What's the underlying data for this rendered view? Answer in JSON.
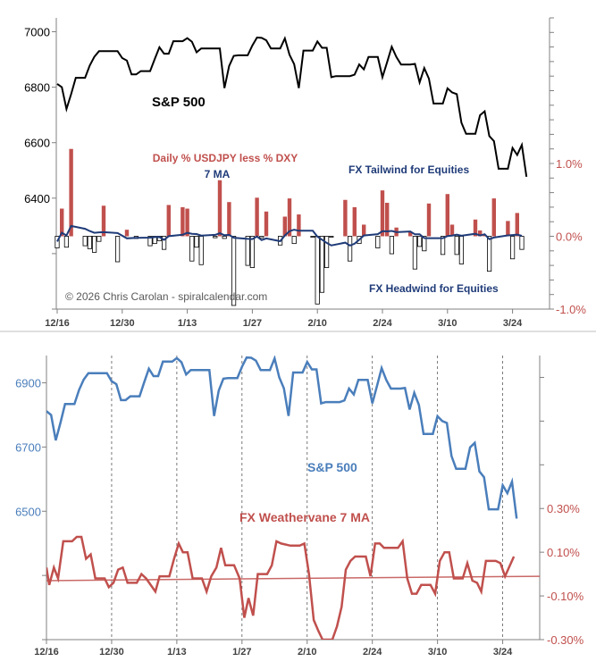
{
  "chart_data": [
    {
      "type": "line+bar",
      "title": "",
      "x_ticks": [
        "12/16",
        "12/30",
        "1/13",
        "1/27",
        "2/10",
        "2/24",
        "3/10",
        "3/24"
      ],
      "x_tick_days": [
        0,
        14,
        28,
        42,
        56,
        70,
        84,
        98
      ],
      "left_axis": {
        "ticks": [
          7000,
          6800,
          6600,
          6400
        ],
        "ylim": [
          6000,
          7050
        ]
      },
      "right_axis": {
        "ticks": [
          "1.0%",
          "0.0%",
          "-1.0%"
        ],
        "tick_values": [
          1.0,
          0.0,
          -1.0
        ],
        "ylim": [
          -1.0,
          3.0
        ]
      },
      "annotations": {
        "sp500": "S&P 500",
        "bars_label": "Daily % USDJPY less % DXY",
        "ma_label": "7 MA",
        "tailwind": "FX Tailwind for Equities",
        "headwind": "FX Headwind for Equities",
        "copyright": "© 2026 Chris Carolan - spiralcalendar.com"
      },
      "colors": {
        "sp500": "#000000",
        "bar_pos": "#C0504D",
        "bar_neg": "#FFFFFF",
        "ma": "#1F3B78"
      },
      "sp500": [
        6812,
        6800,
        6721,
        6775,
        6834,
        6834,
        6834,
        6878,
        6910,
        6930,
        6930,
        6930,
        6930,
        6930,
        6905,
        6896,
        6846,
        6846,
        6858,
        6858,
        6858,
        6902,
        6944,
        6921,
        6921,
        6966,
        6966,
        6966,
        6977,
        6964,
        6926,
        6940,
        6940,
        6940,
        6940,
        6940,
        6797,
        6876,
        6913,
        6915,
        6915,
        6915,
        6950,
        6979,
        6978,
        6969,
        6940,
        6940,
        6940,
        6976,
        6917,
        6883,
        6797,
        6932,
        6932,
        6932,
        6965,
        6942,
        6942,
        6836,
        6840,
        6840,
        6840,
        6840,
        6845,
        6882,
        6864,
        6909,
        6909,
        6909,
        6836,
        6890,
        6946,
        6909,
        6882,
        6882,
        6882,
        6884,
        6817,
        6869,
        6831,
        6741,
        6741,
        6741,
        6796,
        6781,
        6775,
        6672,
        6632,
        6632,
        6632,
        6699,
        6713,
        6624,
        6606,
        6506,
        6506,
        6506,
        6581,
        6556,
        6592,
        6477
      ],
      "bars": [
        [
          0,
          -0.16
        ],
        [
          1,
          0.38
        ],
        [
          2,
          -0.15
        ],
        [
          3,
          1.2
        ],
        [
          6,
          -0.13
        ],
        [
          7,
          -0.17
        ],
        [
          8,
          -0.22
        ],
        [
          9,
          -0.07
        ],
        [
          10,
          0.42
        ],
        [
          13,
          -0.35
        ],
        [
          15,
          0.09
        ],
        [
          17,
          -0.03
        ],
        [
          20,
          -0.13
        ],
        [
          21,
          -0.1
        ],
        [
          22,
          -0.06
        ],
        [
          23,
          -0.18
        ],
        [
          24,
          0.43
        ],
        [
          27,
          0.4
        ],
        [
          28,
          0.38
        ],
        [
          29,
          -0.34
        ],
        [
          30,
          -0.15
        ],
        [
          31,
          -0.39
        ],
        [
          34,
          -0.02
        ],
        [
          35,
          0.77
        ],
        [
          36,
          -0.03
        ],
        [
          37,
          0.47
        ],
        [
          38,
          -0.95
        ],
        [
          41,
          -0.4
        ],
        [
          42,
          -0.43
        ],
        [
          43,
          0.53
        ],
        [
          44,
          -0.02
        ],
        [
          45,
          0.34
        ],
        [
          48,
          -0.12
        ],
        [
          49,
          0.27
        ],
        [
          50,
          0.52
        ],
        [
          51,
          -0.1
        ],
        [
          52,
          0.3
        ],
        [
          55,
          -0.01
        ],
        [
          56,
          -0.93
        ],
        [
          57,
          -0.77
        ],
        [
          58,
          -0.43
        ],
        [
          59,
          -0.01
        ],
        [
          62,
          0.5
        ],
        [
          63,
          -0.34
        ],
        [
          64,
          0.4
        ],
        [
          65,
          -0.1
        ],
        [
          66,
          0.16
        ],
        [
          69,
          -0.16
        ],
        [
          70,
          0.63
        ],
        [
          71,
          0.46
        ],
        [
          72,
          -0.24
        ],
        [
          73,
          0.12
        ],
        [
          76,
          0.06
        ],
        [
          77,
          -0.45
        ],
        [
          78,
          -0.14
        ],
        [
          79,
          -0.2
        ],
        [
          80,
          0.45
        ],
        [
          83,
          -0.25
        ],
        [
          84,
          0.58
        ],
        [
          85,
          0.16
        ],
        [
          86,
          -0.25
        ],
        [
          87,
          -0.38
        ],
        [
          90,
          0.23
        ],
        [
          91,
          0.08
        ],
        [
          92,
          0.02
        ],
        [
          93,
          -0.48
        ],
        [
          94,
          0.52
        ],
        [
          97,
          0.21
        ],
        [
          98,
          -0.31
        ],
        [
          99,
          0.32
        ],
        [
          100,
          -0.18
        ]
      ]
    },
    {
      "type": "line",
      "x_ticks": [
        "12/16",
        "12/30",
        "1/13",
        "1/27",
        "2/10",
        "2/24",
        "3/10",
        "3/24"
      ],
      "x_tick_days": [
        0,
        14,
        28,
        42,
        56,
        70,
        84,
        98
      ],
      "left_axis": {
        "ticks": [
          6900,
          6700,
          6500
        ],
        "ylim": [
          6100,
          6985
        ]
      },
      "right_axis": {
        "ticks": [
          "0.30%",
          "0.10%",
          "-0.10%",
          "-0.30%"
        ],
        "tick_values": [
          0.3,
          0.1,
          -0.1,
          -0.3
        ],
        "ylim": [
          -0.3,
          1.0
        ]
      },
      "annotations": {
        "sp500": "S&P 500",
        "weathervane": "FX Weathervane 7 MA"
      },
      "colors": {
        "sp500": "#4A7EBB",
        "weathervane": "#C0504D"
      },
      "weathervane": [
        [
          0,
          0.03
        ],
        [
          0.6,
          -0.05
        ],
        [
          1.6,
          0.03
        ],
        [
          2.5,
          -0.02
        ],
        [
          3.6,
          0.15
        ],
        [
          5.5,
          0.15
        ],
        [
          6.5,
          0.17
        ],
        [
          7.5,
          0.17
        ],
        [
          8.5,
          0.07
        ],
        [
          9.5,
          0.09
        ],
        [
          10.5,
          -0.02
        ],
        [
          12.5,
          -0.02
        ],
        [
          13.4,
          -0.06
        ],
        [
          14.4,
          -0.04
        ],
        [
          15.4,
          0.02
        ],
        [
          16.4,
          0.03
        ],
        [
          17.4,
          -0.04
        ],
        [
          19.4,
          -0.04
        ],
        [
          20.4,
          0.0
        ],
        [
          21.4,
          -0.02
        ],
        [
          23.4,
          -0.08
        ],
        [
          24.3,
          -0.01
        ],
        [
          26.4,
          -0.01
        ],
        [
          27.4,
          0.07
        ],
        [
          28.4,
          0.14
        ],
        [
          29.3,
          0.1
        ],
        [
          30.3,
          0.1
        ],
        [
          31.4,
          -0.02
        ],
        [
          33.4,
          -0.02
        ],
        [
          34.4,
          -0.08
        ],
        [
          35.4,
          -0.01
        ],
        [
          36.5,
          0.03
        ],
        [
          37.5,
          0.12
        ],
        [
          38.4,
          0.04
        ],
        [
          40.3,
          0.04
        ],
        [
          41.5,
          -0.02
        ],
        [
          42.5,
          -0.2
        ],
        [
          43.4,
          -0.11
        ],
        [
          44.4,
          -0.19
        ],
        [
          45.4,
          0.0
        ],
        [
          47.4,
          0.0
        ],
        [
          48.4,
          0.04
        ],
        [
          49.4,
          0.15
        ],
        [
          50.4,
          0.14
        ],
        [
          52.4,
          0.13
        ],
        [
          54.4,
          0.13
        ],
        [
          55.4,
          0.14
        ],
        [
          56.4,
          0.0
        ],
        [
          57.4,
          -0.21
        ],
        [
          58.4,
          -0.26
        ],
        [
          59.3,
          -0.3
        ],
        [
          61.4,
          -0.3
        ],
        [
          62.4,
          -0.24
        ],
        [
          63.4,
          -0.15
        ],
        [
          64.3,
          0.02
        ],
        [
          65.3,
          0.06
        ],
        [
          66.3,
          0.08
        ],
        [
          68.6,
          0.08
        ],
        [
          69.6,
          -0.01
        ],
        [
          70.6,
          0.14
        ],
        [
          71.6,
          0.14
        ],
        [
          72.5,
          0.12
        ],
        [
          75.5,
          0.12
        ],
        [
          76.5,
          0.15
        ],
        [
          77.5,
          -0.02
        ],
        [
          78.5,
          -0.09
        ],
        [
          79.5,
          -0.09
        ],
        [
          80.5,
          -0.05
        ],
        [
          82.5,
          -0.05
        ],
        [
          83.5,
          -0.09
        ],
        [
          84.5,
          0.06
        ],
        [
          85.5,
          0.1
        ],
        [
          86.5,
          0.1
        ],
        [
          87.5,
          -0.02
        ],
        [
          89.4,
          -0.02
        ],
        [
          90.4,
          0.05
        ],
        [
          91.5,
          -0.03
        ],
        [
          92.5,
          -0.04
        ],
        [
          93.4,
          -0.08
        ],
        [
          94.4,
          0.06
        ],
        [
          96.5,
          0.06
        ],
        [
          97.5,
          0.05
        ],
        [
          98.5,
          -0.01
        ],
        [
          100.4,
          0.08
        ]
      ],
      "trend": [
        [
          0,
          -0.03
        ],
        [
          106,
          -0.01
        ]
      ]
    }
  ]
}
